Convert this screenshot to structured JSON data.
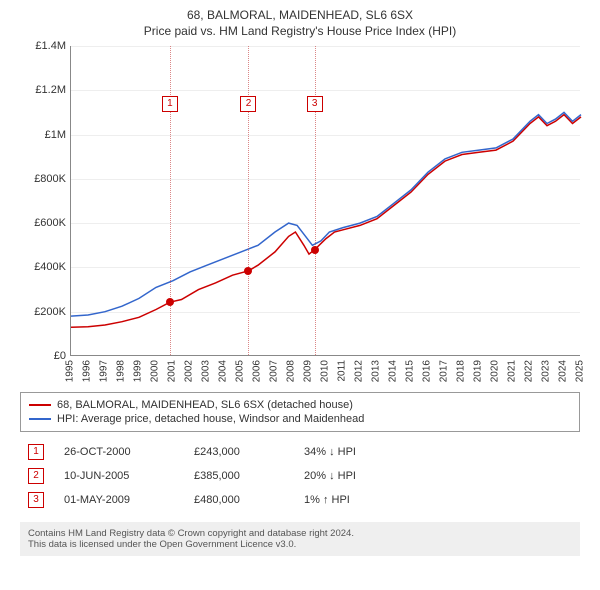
{
  "title": "68, BALMORAL, MAIDENHEAD, SL6 6SX",
  "subtitle": "Price paid vs. HM Land Registry's House Price Index (HPI)",
  "chart": {
    "type": "line",
    "background_color": "#ffffff",
    "grid_color": "#eeeeee",
    "axis_color": "#888888",
    "vline_color": "#cc5555",
    "dot_color": "#cc0000",
    "marker_border_color": "#cc0000",
    "yaxis": {
      "min": 0,
      "max": 1400000,
      "step": 200000,
      "labels": [
        "£0",
        "£200K",
        "£400K",
        "£600K",
        "£800K",
        "£1M",
        "£1.2M",
        "£1.4M"
      ],
      "fontsize": 11
    },
    "xaxis": {
      "min": 1995,
      "max": 2025,
      "ticks": [
        1995,
        1996,
        1997,
        1998,
        1999,
        2000,
        2001,
        2002,
        2003,
        2004,
        2005,
        2006,
        2007,
        2008,
        2009,
        2010,
        2011,
        2012,
        2013,
        2014,
        2015,
        2016,
        2017,
        2018,
        2019,
        2020,
        2021,
        2022,
        2023,
        2024,
        2025
      ],
      "fontsize": 10,
      "rotation": -90
    },
    "series": [
      {
        "name": "property",
        "color": "#cc0000",
        "width": 1.5,
        "label": "68, BALMORAL, MAIDENHEAD, SL6 6SX (detached house)",
        "points": [
          [
            1995.0,
            130000
          ],
          [
            1996.0,
            132000
          ],
          [
            1997.0,
            140000
          ],
          [
            1998.0,
            155000
          ],
          [
            1999.0,
            175000
          ],
          [
            2000.0,
            210000
          ],
          [
            2000.82,
            243000
          ],
          [
            2001.5,
            255000
          ],
          [
            2002.5,
            300000
          ],
          [
            2003.5,
            330000
          ],
          [
            2004.5,
            365000
          ],
          [
            2005.44,
            385000
          ],
          [
            2006.0,
            410000
          ],
          [
            2007.0,
            470000
          ],
          [
            2007.8,
            540000
          ],
          [
            2008.2,
            560000
          ],
          [
            2008.7,
            500000
          ],
          [
            2009.0,
            460000
          ],
          [
            2009.33,
            480000
          ],
          [
            2010.0,
            530000
          ],
          [
            2010.5,
            560000
          ],
          [
            2011.0,
            570000
          ],
          [
            2012.0,
            590000
          ],
          [
            2013.0,
            620000
          ],
          [
            2014.0,
            680000
          ],
          [
            2015.0,
            740000
          ],
          [
            2016.0,
            820000
          ],
          [
            2017.0,
            880000
          ],
          [
            2018.0,
            910000
          ],
          [
            2019.0,
            920000
          ],
          [
            2020.0,
            930000
          ],
          [
            2021.0,
            970000
          ],
          [
            2022.0,
            1050000
          ],
          [
            2022.5,
            1080000
          ],
          [
            2023.0,
            1040000
          ],
          [
            2023.5,
            1060000
          ],
          [
            2024.0,
            1090000
          ],
          [
            2024.5,
            1050000
          ],
          [
            2025.0,
            1080000
          ]
        ]
      },
      {
        "name": "hpi",
        "color": "#3366cc",
        "width": 1.5,
        "label": "HPI: Average price, detached house, Windsor and Maidenhead",
        "points": [
          [
            1995.0,
            180000
          ],
          [
            1996.0,
            185000
          ],
          [
            1997.0,
            200000
          ],
          [
            1998.0,
            225000
          ],
          [
            1999.0,
            260000
          ],
          [
            2000.0,
            310000
          ],
          [
            2001.0,
            340000
          ],
          [
            2002.0,
            380000
          ],
          [
            2003.0,
            410000
          ],
          [
            2004.0,
            440000
          ],
          [
            2005.0,
            470000
          ],
          [
            2006.0,
            500000
          ],
          [
            2007.0,
            560000
          ],
          [
            2007.8,
            600000
          ],
          [
            2008.3,
            590000
          ],
          [
            2008.8,
            540000
          ],
          [
            2009.2,
            500000
          ],
          [
            2009.7,
            520000
          ],
          [
            2010.2,
            560000
          ],
          [
            2011.0,
            580000
          ],
          [
            2012.0,
            600000
          ],
          [
            2013.0,
            630000
          ],
          [
            2014.0,
            690000
          ],
          [
            2015.0,
            750000
          ],
          [
            2016.0,
            830000
          ],
          [
            2017.0,
            890000
          ],
          [
            2018.0,
            920000
          ],
          [
            2019.0,
            930000
          ],
          [
            2020.0,
            940000
          ],
          [
            2021.0,
            980000
          ],
          [
            2022.0,
            1060000
          ],
          [
            2022.5,
            1090000
          ],
          [
            2023.0,
            1050000
          ],
          [
            2023.5,
            1070000
          ],
          [
            2024.0,
            1100000
          ],
          [
            2024.5,
            1060000
          ],
          [
            2025.0,
            1090000
          ]
        ]
      }
    ],
    "markers": [
      {
        "label": "1",
        "year": 2000.82,
        "value": 243000
      },
      {
        "label": "2",
        "year": 2005.44,
        "value": 385000
      },
      {
        "label": "3",
        "year": 2009.33,
        "value": 480000
      }
    ]
  },
  "legend": {
    "border_color": "#999999",
    "rows": [
      {
        "color": "#cc0000",
        "label": "68, BALMORAL, MAIDENHEAD, SL6 6SX (detached house)"
      },
      {
        "color": "#3366cc",
        "label": "HPI: Average price, detached house, Windsor and Maidenhead"
      }
    ]
  },
  "transactions": [
    {
      "num": "1",
      "date": "26-OCT-2000",
      "price": "£243,000",
      "hpi": "34% ↓ HPI"
    },
    {
      "num": "2",
      "date": "10-JUN-2005",
      "price": "£385,000",
      "hpi": "20% ↓ HPI"
    },
    {
      "num": "3",
      "date": "01-MAY-2009",
      "price": "£480,000",
      "hpi": "1% ↑ HPI"
    }
  ],
  "footer": {
    "line1": "Contains HM Land Registry data © Crown copyright and database right 2024.",
    "line2": "This data is licensed under the Open Government Licence v3.0."
  }
}
